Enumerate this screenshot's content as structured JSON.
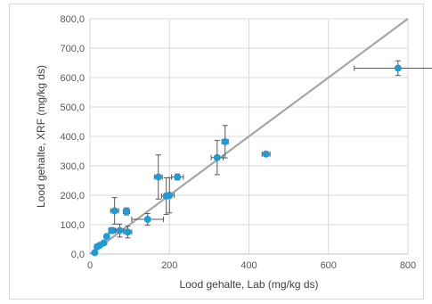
{
  "chart_data": {
    "type": "scatter",
    "xlabel": "Lood gehalte, Lab (mg/kg ds)",
    "ylabel": "Lood gehalte, XRF (mg/kg ds)",
    "xlim": [
      0,
      800
    ],
    "ylim": [
      0,
      800
    ],
    "x_ticks": [
      "0",
      "200",
      "400",
      "600",
      "800"
    ],
    "y_ticks": [
      "0,0",
      "100,0",
      "200,0",
      "300,0",
      "400,0",
      "500,0",
      "600,0",
      "700,0",
      "800,0"
    ],
    "grid": true,
    "legend": "none",
    "reference_line": {
      "from": [
        0,
        0
      ],
      "to": [
        800,
        800
      ],
      "color": "#a6a6a6"
    },
    "marker_color": "#1f9bd6",
    "error_bar_color": "#595959",
    "points": [
      {
        "x": 12,
        "y": 5,
        "xerr": 3,
        "yerr": 3
      },
      {
        "x": 18,
        "y": 25,
        "xerr": 3,
        "yerr": 4
      },
      {
        "x": 25,
        "y": 30,
        "xerr": 4,
        "yerr": 4
      },
      {
        "x": 35,
        "y": 38,
        "xerr": 5,
        "yerr": 5
      },
      {
        "x": 42,
        "y": 60,
        "xerr": 5,
        "yerr": 5
      },
      {
        "x": 55,
        "y": 80,
        "xerr": 8,
        "yerr": 10
      },
      {
        "x": 62,
        "y": 147,
        "xerr": 10,
        "yerr": 45
      },
      {
        "x": 75,
        "y": 80,
        "xerr": 10,
        "yerr": 22
      },
      {
        "x": 92,
        "y": 145,
        "xerr": 8,
        "yerr": 12
      },
      {
        "x": 95,
        "y": 75,
        "xerr": 10,
        "yerr": 20
      },
      {
        "x": 145,
        "y": 118,
        "xerr": 40,
        "yerr": 20
      },
      {
        "x": 172,
        "y": 262,
        "xerr": 10,
        "yerr": 75
      },
      {
        "x": 192,
        "y": 197,
        "xerr": 12,
        "yerr": 62
      },
      {
        "x": 200,
        "y": 200,
        "xerr": 12,
        "yerr": 60
      },
      {
        "x": 220,
        "y": 262,
        "xerr": 15,
        "yerr": 10
      },
      {
        "x": 320,
        "y": 328,
        "xerr": 15,
        "yerr": 58
      },
      {
        "x": 340,
        "y": 382,
        "xerr": 8,
        "yerr": 55
      },
      {
        "x": 443,
        "y": 340,
        "xerr": 10,
        "yerr": 6
      },
      {
        "x": 775,
        "y": 632,
        "xerr": 110,
        "yerr": 25
      }
    ]
  }
}
